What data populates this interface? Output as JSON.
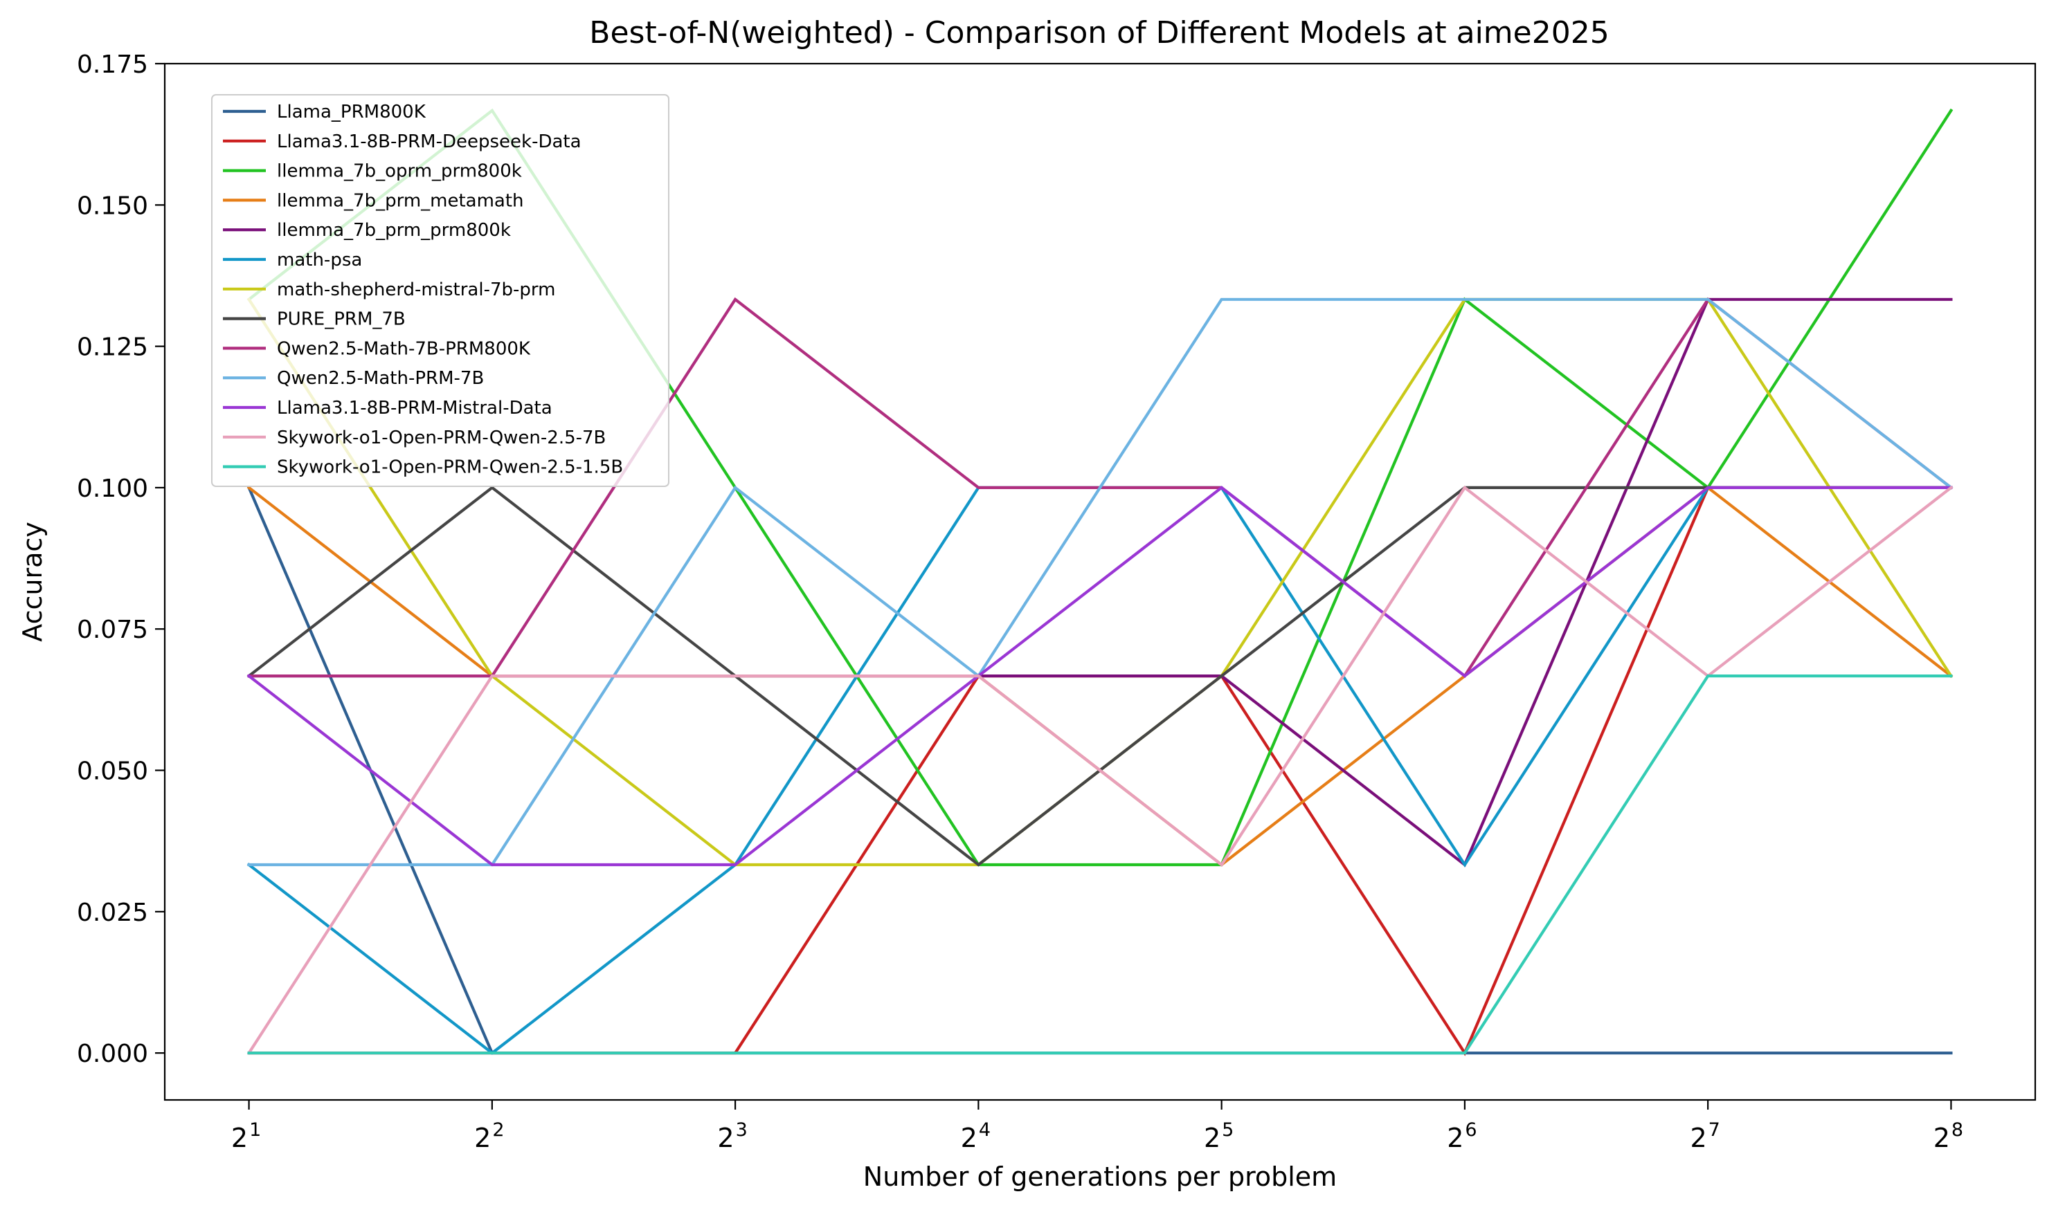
{
  "chart_data": {
    "type": "line",
    "title": "Best-of-N(weighted) - Comparison of Different Models at aime2025",
    "xlabel": "Number of generations per problem",
    "ylabel": "Accuracy",
    "x_scale": "log2",
    "x": [
      2,
      4,
      8,
      16,
      32,
      64,
      128,
      256
    ],
    "x_tick_labels": [
      {
        "base": "2",
        "exp": "1"
      },
      {
        "base": "2",
        "exp": "2"
      },
      {
        "base": "2",
        "exp": "3"
      },
      {
        "base": "2",
        "exp": "4"
      },
      {
        "base": "2",
        "exp": "5"
      },
      {
        "base": "2",
        "exp": "6"
      },
      {
        "base": "2",
        "exp": "7"
      },
      {
        "base": "2",
        "exp": "8"
      }
    ],
    "ylim": [
      -0.0083,
      0.175
    ],
    "y_ticks": [
      {
        "value": 0.0,
        "label": "0.000"
      },
      {
        "value": 0.025,
        "label": "0.025"
      },
      {
        "value": 0.05,
        "label": "0.050"
      },
      {
        "value": 0.075,
        "label": "0.075"
      },
      {
        "value": 0.1,
        "label": "0.100"
      },
      {
        "value": 0.125,
        "label": "0.125"
      },
      {
        "value": 0.15,
        "label": "0.150"
      },
      {
        "value": 0.175,
        "label": "0.175"
      }
    ],
    "grid": false,
    "legend_position": "upper-left",
    "series": [
      {
        "name": "Llama_PRM800K",
        "color": "#2e5f91",
        "values": [
          0.1,
          0.0,
          0.0,
          0.0,
          0.0,
          0.0,
          0.0,
          0.0
        ]
      },
      {
        "name": "Llama3.1-8B-PRM-Deepseek-Data",
        "color": "#cc1f1f",
        "values": [
          0.0,
          0.0,
          0.0,
          0.0667,
          0.0667,
          0.0,
          0.1,
          0.1
        ]
      },
      {
        "name": "llemma_7b_oprm_prm800k",
        "color": "#22c322",
        "values": [
          0.1333,
          0.1667,
          0.1,
          0.0333,
          0.0333,
          0.1333,
          0.1,
          0.1667
        ]
      },
      {
        "name": "llemma_7b_prm_metamath",
        "color": "#e67e17",
        "values": [
          0.1,
          0.0667,
          0.0667,
          0.0667,
          0.0333,
          0.0667,
          0.1,
          0.0667
        ]
      },
      {
        "name": "llemma_7b_prm_prm800k",
        "color": "#7a0f7a",
        "values": [
          0.0667,
          0.0667,
          0.0667,
          0.0667,
          0.0667,
          0.0333,
          0.1333,
          0.1333
        ]
      },
      {
        "name": "math-psa",
        "color": "#1297c8",
        "values": [
          0.0333,
          0.0,
          0.0333,
          0.1,
          0.1,
          0.0333,
          0.1,
          0.1
        ]
      },
      {
        "name": "math-shepherd-mistral-7b-prm",
        "color": "#c9c919",
        "values": [
          0.1333,
          0.0667,
          0.0333,
          0.0333,
          0.0667,
          0.1333,
          0.1333,
          0.0667
        ]
      },
      {
        "name": "PURE_PRM_7B",
        "color": "#454545",
        "values": [
          0.0667,
          0.1,
          0.0667,
          0.0333,
          0.0667,
          0.1,
          0.1,
          0.1
        ]
      },
      {
        "name": "Qwen2.5-Math-7B-PRM800K",
        "color": "#b02e7f",
        "values": [
          0.0667,
          0.0667,
          0.1333,
          0.1,
          0.1,
          0.0667,
          0.1333,
          0.1
        ]
      },
      {
        "name": "Qwen2.5-Math-PRM-7B",
        "color": "#6cb3e2",
        "values": [
          0.0333,
          0.0333,
          0.1,
          0.0667,
          0.1333,
          0.1333,
          0.1333,
          0.1
        ]
      },
      {
        "name": "Llama3.1-8B-PRM-Mistral-Data",
        "color": "#9a36d4",
        "values": [
          0.0667,
          0.0333,
          0.0333,
          0.0667,
          0.1,
          0.0667,
          0.1,
          0.1
        ]
      },
      {
        "name": "Skywork-o1-Open-PRM-Qwen-2.5-7B",
        "color": "#e8a0ba",
        "values": [
          0.0,
          0.0667,
          0.0667,
          0.0667,
          0.0333,
          0.1,
          0.0667,
          0.1
        ]
      },
      {
        "name": "Skywork-o1-Open-PRM-Qwen-2.5-1.5B",
        "color": "#33ccb4",
        "values": [
          0.0,
          0.0,
          0.0,
          0.0,
          0.0,
          0.0,
          0.0667,
          0.0667
        ]
      }
    ]
  }
}
